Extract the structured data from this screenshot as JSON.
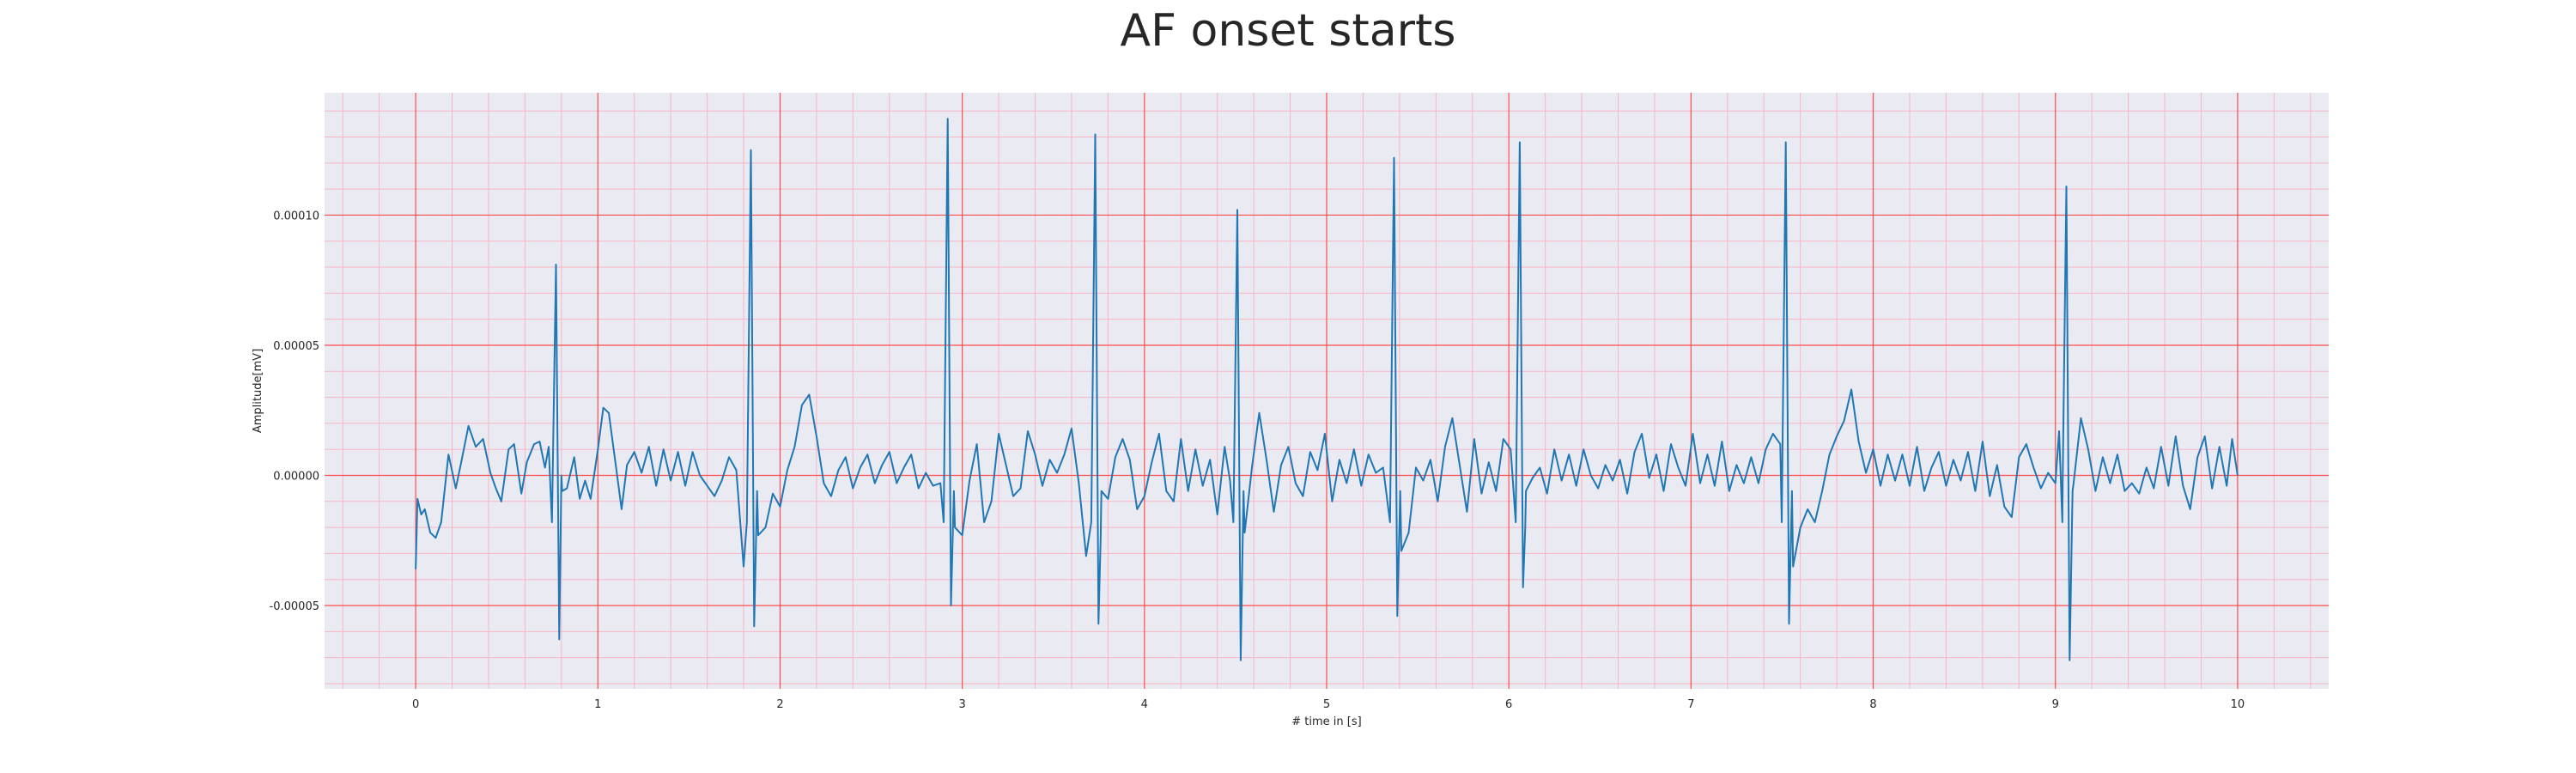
{
  "chart_data": {
    "type": "line",
    "title": "AF onset starts",
    "xlabel": "# time in [s]",
    "ylabel": "Amplitude[mV]",
    "xlim": [
      -0.5,
      10.5
    ],
    "ylim": [
      -8.2e-05,
      0.000147
    ],
    "x_ticks": [
      0,
      1,
      2,
      3,
      4,
      5,
      6,
      7,
      8,
      9,
      10
    ],
    "x_tick_labels": [
      "0",
      "1",
      "2",
      "3",
      "4",
      "5",
      "6",
      "7",
      "8",
      "9",
      "10"
    ],
    "y_ticks": [
      -5e-05,
      0.0,
      5e-05,
      0.0001
    ],
    "y_tick_labels": [
      "-0.00005",
      "0.00000",
      "0.00005",
      "0.00010"
    ],
    "grid": {
      "major": true,
      "minor": true,
      "major_color": "#ff4d4d",
      "minor_color": "#f7b5c4"
    },
    "background_color": "#eaeaf2",
    "series": [
      {
        "color": "#1f77b4",
        "qrs_events": [
          {
            "t": 0.77,
            "r": 8.1e-05,
            "s": -6.3e-05
          },
          {
            "t": 1.84,
            "r": 0.000125,
            "s": -5.8e-05
          },
          {
            "t": 2.92,
            "r": 0.000137,
            "s": -5e-05
          },
          {
            "t": 3.73,
            "r": 0.000131,
            "s": -5.7e-05
          },
          {
            "t": 4.51,
            "r": 0.000102,
            "s": -7.1e-05
          },
          {
            "t": 5.37,
            "r": 0.000122,
            "s": -5.4e-05
          },
          {
            "t": 6.06,
            "r": 0.000128,
            "s": -4.3e-05
          },
          {
            "t": 7.52,
            "r": 0.000128,
            "s": -5.7e-05
          },
          {
            "t": 9.06,
            "r": 0.000111,
            "s": -7.1e-05
          }
        ],
        "baseline_points": [
          [
            0.0,
            -3.6e-05
          ],
          [
            0.01,
            -9e-06
          ],
          [
            0.03,
            -1.5e-05
          ],
          [
            0.05,
            -1.3e-05
          ],
          [
            0.08,
            -2.2e-05
          ],
          [
            0.11,
            -2.4e-05
          ],
          [
            0.14,
            -1.8e-05
          ],
          [
            0.18,
            8e-06
          ],
          [
            0.22,
            -5e-06
          ],
          [
            0.25,
            5e-06
          ],
          [
            0.29,
            1.9e-05
          ],
          [
            0.33,
            1.1e-05
          ],
          [
            0.37,
            1.4e-05
          ],
          [
            0.41,
            1e-06
          ],
          [
            0.44,
            -5e-06
          ],
          [
            0.47,
            -1e-05
          ],
          [
            0.51,
            1e-05
          ],
          [
            0.54,
            1.2e-05
          ],
          [
            0.58,
            -7e-06
          ],
          [
            0.61,
            5e-06
          ],
          [
            0.65,
            1.2e-05
          ],
          [
            0.68,
            1.3e-05
          ],
          [
            0.71,
            3e-06
          ],
          [
            0.73,
            1.1e-05
          ],
          [
            0.8,
            0.0
          ],
          [
            0.83,
            -5e-06
          ],
          [
            0.87,
            7e-06
          ],
          [
            0.9,
            -9e-06
          ],
          [
            0.93,
            -2e-06
          ],
          [
            0.96,
            -9e-06
          ],
          [
            1.0,
            1e-05
          ],
          [
            1.03,
            2.6e-05
          ],
          [
            1.06,
            2.4e-05
          ],
          [
            1.1,
            3e-06
          ],
          [
            1.13,
            -1.3e-05
          ],
          [
            1.16,
            4e-06
          ],
          [
            1.2,
            9e-06
          ],
          [
            1.24,
            1e-06
          ],
          [
            1.28,
            1.1e-05
          ],
          [
            1.32,
            -4e-06
          ],
          [
            1.36,
            1e-05
          ],
          [
            1.4,
            -2e-06
          ],
          [
            1.44,
            9e-06
          ],
          [
            1.48,
            -4e-06
          ],
          [
            1.52,
            9e-06
          ],
          [
            1.56,
            0.0
          ],
          [
            1.6,
            -4e-06
          ],
          [
            1.64,
            -8e-06
          ],
          [
            1.68,
            -2e-06
          ],
          [
            1.72,
            7e-06
          ],
          [
            1.76,
            2e-06
          ],
          [
            1.8,
            -3.5e-05
          ],
          [
            1.88,
            -2.3e-05
          ],
          [
            1.92,
            -2e-05
          ],
          [
            1.96,
            -7e-06
          ],
          [
            2.0,
            -1.2e-05
          ],
          [
            2.04,
            2e-06
          ],
          [
            2.08,
            1.1e-05
          ],
          [
            2.12,
            2.7e-05
          ],
          [
            2.16,
            3.1e-05
          ],
          [
            2.2,
            1.5e-05
          ],
          [
            2.24,
            -3e-06
          ],
          [
            2.28,
            -8e-06
          ],
          [
            2.32,
            2e-06
          ],
          [
            2.36,
            7e-06
          ],
          [
            2.4,
            -5e-06
          ],
          [
            2.44,
            3e-06
          ],
          [
            2.48,
            8e-06
          ],
          [
            2.52,
            -3e-06
          ],
          [
            2.56,
            4e-06
          ],
          [
            2.6,
            9e-06
          ],
          [
            2.64,
            -3e-06
          ],
          [
            2.68,
            3e-06
          ],
          [
            2.72,
            8e-06
          ],
          [
            2.76,
            -5e-06
          ],
          [
            2.8,
            1e-06
          ],
          [
            2.84,
            -4e-06
          ],
          [
            2.88,
            -3e-06
          ],
          [
            2.96,
            -2e-05
          ],
          [
            3.0,
            -2.3e-05
          ],
          [
            3.04,
            -2e-06
          ],
          [
            3.08,
            1.2e-05
          ],
          [
            3.12,
            -1.8e-05
          ],
          [
            3.16,
            -1e-05
          ],
          [
            3.2,
            1.6e-05
          ],
          [
            3.24,
            4e-06
          ],
          [
            3.28,
            -8e-06
          ],
          [
            3.32,
            -5e-06
          ],
          [
            3.36,
            1.7e-05
          ],
          [
            3.4,
            8e-06
          ],
          [
            3.44,
            -4e-06
          ],
          [
            3.48,
            6e-06
          ],
          [
            3.52,
            1e-06
          ],
          [
            3.56,
            8e-06
          ],
          [
            3.6,
            1.8e-05
          ],
          [
            3.64,
            -3e-06
          ],
          [
            3.68,
            -3.1e-05
          ],
          [
            3.76,
            -2.3e-05
          ],
          [
            3.8,
            -9e-06
          ],
          [
            3.84,
            7e-06
          ],
          [
            3.88,
            1.4e-05
          ],
          [
            3.92,
            6e-06
          ],
          [
            3.96,
            -1.3e-05
          ],
          [
            4.0,
            -8e-06
          ],
          [
            4.04,
            5e-06
          ],
          [
            4.08,
            1.6e-05
          ],
          [
            4.12,
            -6e-06
          ],
          [
            4.16,
            -1e-05
          ],
          [
            4.2,
            1.4e-05
          ],
          [
            4.24,
            -6e-06
          ],
          [
            4.28,
            1e-05
          ],
          [
            4.32,
            -4e-06
          ],
          [
            4.36,
            6e-06
          ],
          [
            4.4,
            -1.5e-05
          ],
          [
            4.44,
            1.1e-05
          ],
          [
            4.47,
            -2e-06
          ],
          [
            4.55,
            -2.2e-05
          ],
          [
            4.59,
            3e-06
          ],
          [
            4.63,
            2.4e-05
          ],
          [
            4.67,
            6e-06
          ],
          [
            4.71,
            -1.4e-05
          ],
          [
            4.75,
            4e-06
          ],
          [
            4.79,
            1.1e-05
          ],
          [
            4.83,
            -3e-06
          ],
          [
            4.87,
            -8e-06
          ],
          [
            4.91,
            9e-06
          ],
          [
            4.95,
            2e-06
          ],
          [
            4.99,
            1.6e-05
          ],
          [
            5.03,
            -1e-05
          ],
          [
            5.07,
            6e-06
          ],
          [
            5.11,
            -3e-06
          ],
          [
            5.15,
            1e-05
          ],
          [
            5.19,
            -4e-06
          ],
          [
            5.23,
            8e-06
          ],
          [
            5.27,
            1e-06
          ],
          [
            5.31,
            3e-06
          ],
          [
            5.41,
            -2.9e-05
          ],
          [
            5.45,
            -2.2e-05
          ],
          [
            5.49,
            3e-06
          ],
          [
            5.53,
            -2e-06
          ],
          [
            5.57,
            6e-06
          ],
          [
            5.61,
            -1e-05
          ],
          [
            5.65,
            1.1e-05
          ],
          [
            5.69,
            2.2e-05
          ],
          [
            5.73,
            4e-06
          ],
          [
            5.77,
            -1.4e-05
          ],
          [
            5.81,
            1.4e-05
          ],
          [
            5.85,
            -7e-06
          ],
          [
            5.89,
            5e-06
          ],
          [
            5.93,
            -6e-06
          ],
          [
            5.97,
            1.4e-05
          ],
          [
            6.01,
            1e-05
          ],
          [
            6.09,
            -2e-05
          ],
          [
            6.13,
            -1e-06
          ],
          [
            6.17,
            3e-06
          ],
          [
            6.21,
            -7e-06
          ],
          [
            6.25,
            1e-05
          ],
          [
            6.29,
            -2e-06
          ],
          [
            6.33,
            8e-06
          ],
          [
            6.37,
            -4e-06
          ],
          [
            6.41,
            1e-05
          ],
          [
            6.45,
            0.0
          ],
          [
            6.49,
            -5e-06
          ],
          [
            6.53,
            4e-06
          ],
          [
            6.57,
            -2e-06
          ],
          [
            6.61,
            6e-06
          ],
          [
            6.65,
            -7e-06
          ],
          [
            6.69,
            9e-06
          ],
          [
            6.73,
            1.6e-05
          ],
          [
            6.77,
            -1e-06
          ],
          [
            6.81,
            8e-06
          ],
          [
            6.85,
            -6e-06
          ],
          [
            6.89,
            1.2e-05
          ],
          [
            6.93,
            3e-06
          ],
          [
            6.97,
            -4e-06
          ],
          [
            7.01,
            1.6e-05
          ],
          [
            7.05,
            -3e-06
          ],
          [
            7.09,
            8e-06
          ],
          [
            7.13,
            -4e-06
          ],
          [
            7.17,
            1.3e-05
          ],
          [
            7.21,
            -6e-06
          ],
          [
            7.25,
            4e-06
          ],
          [
            7.29,
            -3e-06
          ],
          [
            7.33,
            7e-06
          ],
          [
            7.37,
            -3e-06
          ],
          [
            7.41,
            1e-05
          ],
          [
            7.45,
            1.6e-05
          ],
          [
            7.49,
            1.2e-05
          ],
          [
            7.56,
            -3.5e-05
          ],
          [
            7.6,
            -2e-05
          ],
          [
            7.64,
            -1.3e-05
          ],
          [
            7.68,
            -1.8e-05
          ],
          [
            7.72,
            -6e-06
          ],
          [
            7.76,
            8e-06
          ],
          [
            7.8,
            1.5e-05
          ],
          [
            7.84,
            2.1e-05
          ],
          [
            7.88,
            3.3e-05
          ],
          [
            7.92,
            1.3e-05
          ],
          [
            7.96,
            1e-06
          ],
          [
            8.0,
            1e-05
          ],
          [
            8.04,
            -4e-06
          ],
          [
            8.08,
            8e-06
          ],
          [
            8.12,
            -2e-06
          ],
          [
            8.16,
            8e-06
          ],
          [
            8.2,
            -4e-06
          ],
          [
            8.24,
            1.1e-05
          ],
          [
            8.28,
            -6e-06
          ],
          [
            8.32,
            3e-06
          ],
          [
            8.36,
            9e-06
          ],
          [
            8.4,
            -4e-06
          ],
          [
            8.44,
            6e-06
          ],
          [
            8.48,
            -2e-06
          ],
          [
            8.52,
            9e-06
          ],
          [
            8.56,
            -6e-06
          ],
          [
            8.6,
            1.3e-05
          ],
          [
            8.64,
            -8e-06
          ],
          [
            8.68,
            4e-06
          ],
          [
            8.72,
            -1.2e-05
          ],
          [
            8.76,
            -1.6e-05
          ],
          [
            8.8,
            7e-06
          ],
          [
            8.84,
            1.2e-05
          ],
          [
            8.88,
            3e-06
          ],
          [
            8.92,
            -5e-06
          ],
          [
            8.96,
            1e-06
          ],
          [
            9.0,
            -3e-06
          ],
          [
            9.02,
            1.7e-05
          ],
          [
            9.04,
            -2e-06
          ],
          [
            9.1,
            -3e-06
          ],
          [
            9.14,
            2.2e-05
          ],
          [
            9.18,
            1e-05
          ],
          [
            9.22,
            -6e-06
          ],
          [
            9.26,
            7e-06
          ],
          [
            9.3,
            -3e-06
          ],
          [
            9.34,
            8e-06
          ],
          [
            9.38,
            -6e-06
          ],
          [
            9.42,
            -3e-06
          ],
          [
            9.46,
            -7e-06
          ],
          [
            9.5,
            3e-06
          ],
          [
            9.54,
            -5e-06
          ],
          [
            9.58,
            1.1e-05
          ],
          [
            9.62,
            -4e-06
          ],
          [
            9.66,
            1.5e-05
          ],
          [
            9.7,
            -4e-06
          ],
          [
            9.74,
            -1.3e-05
          ],
          [
            9.78,
            7e-06
          ],
          [
            9.82,
            1.5e-05
          ],
          [
            9.86,
            -5e-06
          ],
          [
            9.9,
            1.1e-05
          ],
          [
            9.94,
            -4e-06
          ],
          [
            9.97,
            1.4e-05
          ],
          [
            10.0,
            0.0
          ]
        ]
      }
    ]
  }
}
